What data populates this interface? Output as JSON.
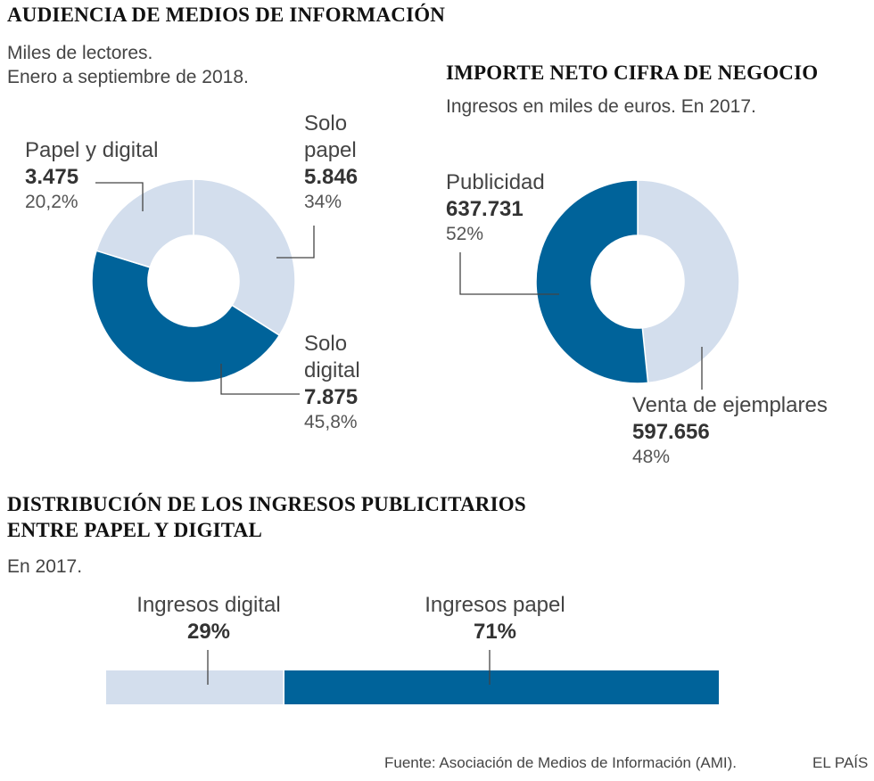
{
  "colors": {
    "dark": "#00639a",
    "light": "#d3deed",
    "leader": "#444444"
  },
  "section1": {
    "title": "AUDIENCIA DE MEDIOS DE INFORMACIÓN",
    "subtitle_line1": "Miles de lectores.",
    "subtitle_line2": "Enero a septiembre de 2018."
  },
  "section2": {
    "title": "IMPORTE NETO CIFRA DE NEGOCIO",
    "subtitle": "Ingresos en miles de euros. En 2017."
  },
  "section3": {
    "title_line1": "DISTRIBUCIÓN DE LOS INGRESOS PUBLICITARIOS",
    "title_line2": "ENTRE PAPEL Y DIGITAL",
    "subtitle": "En 2017."
  },
  "chart_data": [
    {
      "type": "pie",
      "variant": "donut",
      "title": "AUDIENCIA DE MEDIOS DE INFORMACIÓN",
      "unit": "Miles de lectores",
      "slices": [
        {
          "name_line1": "Solo",
          "name_line2": "papel",
          "value": 5846,
          "value_label": "5.846",
          "percent": 34,
          "percent_label": "34%",
          "color": "light"
        },
        {
          "name_line1": "Solo",
          "name_line2": "digital",
          "value": 7875,
          "value_label": "7.875",
          "percent": 45.8,
          "percent_label": "45,8%",
          "color": "dark"
        },
        {
          "name_line1": "Papel y digital",
          "value": 3475,
          "value_label": "3.475",
          "percent": 20.2,
          "percent_label": "20,2%",
          "color": "light"
        }
      ]
    },
    {
      "type": "pie",
      "variant": "donut",
      "title": "IMPORTE NETO CIFRA DE NEGOCIO",
      "unit": "Ingresos en miles de euros",
      "slices": [
        {
          "name_line1": "Venta de ejemplares",
          "value": 597656,
          "value_label": "597.656",
          "percent": 48,
          "percent_label": "48%",
          "color": "light"
        },
        {
          "name_line1": "Publicidad",
          "value": 637731,
          "value_label": "637.731",
          "percent": 52,
          "percent_label": "52%",
          "color": "dark"
        }
      ]
    },
    {
      "type": "bar",
      "variant": "stacked-horizontal",
      "title": "DISTRIBUCIÓN DE LOS INGRESOS PUBLICITARIOS ENTRE PAPEL Y DIGITAL",
      "segments": [
        {
          "name": "Ingresos digital",
          "value": 29,
          "percent_label": "29%",
          "color": "light"
        },
        {
          "name": "Ingresos papel",
          "value": 71,
          "percent_label": "71%",
          "color": "dark"
        }
      ]
    }
  ],
  "footer": {
    "source": "Fuente: Asociación de Medios de Información (AMI).",
    "brand": "EL PAÍS"
  }
}
